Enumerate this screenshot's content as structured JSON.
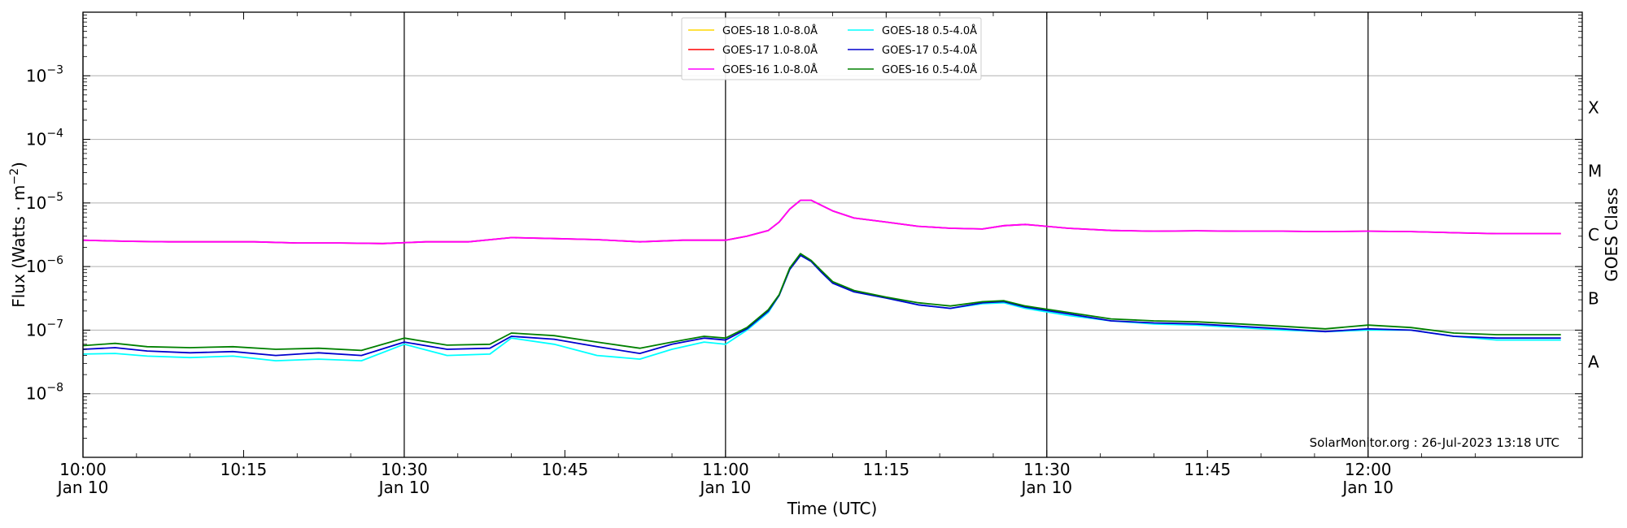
{
  "chart_data": {
    "type": "line",
    "title": "",
    "xlabel": "Time (UTC)",
    "ylabel": "Flux (Watts · m⁻²)",
    "y2label": "GOES Class",
    "y_scale": "log",
    "ylim": [
      1e-09,
      0.01
    ],
    "xlim": [
      "10:00",
      "12:20"
    ],
    "grid": "horizontal",
    "legend_position": "top-center",
    "x_ticks": [
      {
        "time": "10:00",
        "label": "10:00",
        "sublabel": "Jan 10"
      },
      {
        "time": "10:15",
        "label": "10:15",
        "sublabel": ""
      },
      {
        "time": "10:30",
        "label": "10:30",
        "sublabel": "Jan 10"
      },
      {
        "time": "10:45",
        "label": "10:45",
        "sublabel": ""
      },
      {
        "time": "11:00",
        "label": "11:00",
        "sublabel": "Jan 10"
      },
      {
        "time": "11:15",
        "label": "11:15",
        "sublabel": ""
      },
      {
        "time": "11:30",
        "label": "11:30",
        "sublabel": "Jan 10"
      },
      {
        "time": "11:45",
        "label": "11:45",
        "sublabel": ""
      },
      {
        "time": "12:00",
        "label": "12:00",
        "sublabel": "Jan 10"
      }
    ],
    "vertical_lines": [
      "10:00",
      "10:30",
      "11:00",
      "11:30",
      "12:00"
    ],
    "y_ticks": [
      {
        "value": 1e-08,
        "base": "10",
        "exp": "−8"
      },
      {
        "value": 1e-07,
        "base": "10",
        "exp": "−7"
      },
      {
        "value": 1e-06,
        "base": "10",
        "exp": "−6"
      },
      {
        "value": 1e-05,
        "base": "10",
        "exp": "−5"
      },
      {
        "value": 0.0001,
        "base": "10",
        "exp": "−4"
      },
      {
        "value": 0.001,
        "base": "10",
        "exp": "−3"
      }
    ],
    "goes_classes": [
      {
        "label": "A",
        "value": 3.16e-08
      },
      {
        "label": "B",
        "value": 3.16e-07
      },
      {
        "label": "C",
        "value": 3.16e-06
      },
      {
        "label": "M",
        "value": 3.16e-05
      },
      {
        "label": "X",
        "value": 0.000316
      }
    ],
    "credit": "SolarMonitor.org : 26-Jul-2023 13:18 UTC",
    "legend": [
      {
        "label": "GOES-18 1.0-8.0Å",
        "color": "#ffd700"
      },
      {
        "label": "GOES-17 1.0-8.0Å",
        "color": "#ff0000"
      },
      {
        "label": "GOES-16 1.0-8.0Å",
        "color": "#ff00ff"
      },
      {
        "label": "GOES-18 0.5-4.0Å",
        "color": "#00ffff"
      },
      {
        "label": "GOES-17 0.5-4.0Å",
        "color": "#0000cd"
      },
      {
        "label": "GOES-16 0.5-4.0Å",
        "color": "#008000"
      }
    ],
    "series": [
      {
        "name": "GOES-18 1.0-8.0Å",
        "color": "#ffd700",
        "x": [],
        "values": []
      },
      {
        "name": "GOES-17 1.0-8.0Å",
        "color": "#ff0000",
        "x": [
          "10:00",
          "10:04",
          "10:08",
          "10:12",
          "10:16",
          "10:20",
          "10:24",
          "10:28",
          "10:32",
          "10:36",
          "10:40",
          "10:44",
          "10:48",
          "10:52",
          "10:56",
          "11:00",
          "11:02",
          "11:04",
          "11:05",
          "11:06",
          "11:07",
          "11:08",
          "11:10",
          "11:12",
          "11:15",
          "11:18",
          "11:21",
          "11:24",
          "11:26",
          "11:28",
          "11:32",
          "11:36",
          "11:40",
          "11:44",
          "11:48",
          "11:52",
          "11:56",
          "12:00",
          "12:04",
          "12:08",
          "12:12",
          "12:18"
        ],
        "values": [
          2.6e-06,
          2.5e-06,
          2.45e-06,
          2.45e-06,
          2.45e-06,
          2.35e-06,
          2.35e-06,
          2.3e-06,
          2.45e-06,
          2.45e-06,
          2.85e-06,
          2.75e-06,
          2.65e-06,
          2.45e-06,
          2.6e-06,
          2.6e-06,
          3e-06,
          3.7e-06,
          5e-06,
          8e-06,
          1.1e-05,
          1.1e-05,
          7.5e-06,
          5.8e-06,
          5e-06,
          4.3e-06,
          4e-06,
          3.9e-06,
          4.4e-06,
          4.6e-06,
          4e-06,
          3.7e-06,
          3.6e-06,
          3.65e-06,
          3.6e-06,
          3.6e-06,
          3.55e-06,
          3.6e-06,
          3.55e-06,
          3.4e-06,
          3.3e-06,
          3.3e-06
        ]
      },
      {
        "name": "GOES-16 1.0-8.0Å",
        "color": "#ff00ff",
        "x": [
          "10:00",
          "10:04",
          "10:08",
          "10:12",
          "10:16",
          "10:20",
          "10:24",
          "10:28",
          "10:32",
          "10:36",
          "10:40",
          "10:44",
          "10:48",
          "10:52",
          "10:56",
          "11:00",
          "11:02",
          "11:04",
          "11:05",
          "11:06",
          "11:07",
          "11:08",
          "11:10",
          "11:12",
          "11:15",
          "11:18",
          "11:21",
          "11:24",
          "11:26",
          "11:28",
          "11:32",
          "11:36",
          "11:40",
          "11:44",
          "11:48",
          "11:52",
          "11:56",
          "12:00",
          "12:04",
          "12:08",
          "12:12",
          "12:18"
        ],
        "values": [
          2.6e-06,
          2.5e-06,
          2.45e-06,
          2.45e-06,
          2.45e-06,
          2.35e-06,
          2.35e-06,
          2.3e-06,
          2.45e-06,
          2.45e-06,
          2.85e-06,
          2.75e-06,
          2.65e-06,
          2.45e-06,
          2.6e-06,
          2.6e-06,
          3e-06,
          3.7e-06,
          5e-06,
          8e-06,
          1.1e-05,
          1.1e-05,
          7.5e-06,
          5.8e-06,
          5e-06,
          4.3e-06,
          4e-06,
          3.9e-06,
          4.4e-06,
          4.6e-06,
          4e-06,
          3.7e-06,
          3.6e-06,
          3.65e-06,
          3.6e-06,
          3.6e-06,
          3.55e-06,
          3.6e-06,
          3.55e-06,
          3.4e-06,
          3.3e-06,
          3.3e-06
        ]
      },
      {
        "name": "GOES-18 0.5-4.0Å",
        "color": "#00ffff",
        "x": [
          "10:00",
          "10:03",
          "10:06",
          "10:10",
          "10:14",
          "10:18",
          "10:22",
          "10:26",
          "10:30",
          "10:34",
          "10:38",
          "10:40",
          "10:44",
          "10:48",
          "10:52",
          "10:55",
          "10:58",
          "11:00",
          "11:02",
          "11:04",
          "11:05",
          "11:06",
          "11:07",
          "11:08",
          "11:09",
          "11:10",
          "11:12",
          "11:15",
          "11:18",
          "11:21",
          "11:24",
          "11:26",
          "11:28",
          "11:32",
          "11:36",
          "11:40",
          "11:44",
          "11:48",
          "11:52",
          "11:56",
          "12:00",
          "12:04",
          "12:08",
          "12:12",
          "12:18"
        ],
        "values": [
          4.2e-08,
          4.3e-08,
          3.9e-08,
          3.7e-08,
          3.9e-08,
          3.3e-08,
          3.5e-08,
          3.3e-08,
          6e-08,
          4e-08,
          4.2e-08,
          7.5e-08,
          6e-08,
          4e-08,
          3.5e-08,
          5e-08,
          6.5e-08,
          6e-08,
          1e-07,
          1.9e-07,
          3.5e-07,
          9e-07,
          1.5e-06,
          1.2e-06,
          8e-07,
          5.5e-07,
          4e-07,
          3.2e-07,
          2.5e-07,
          2.2e-07,
          2.6e-07,
          2.7e-07,
          2.2e-07,
          1.7e-07,
          1.4e-07,
          1.25e-07,
          1.2e-07,
          1.1e-07,
          1e-07,
          9.5e-08,
          1e-07,
          1e-07,
          8e-08,
          7e-08,
          7e-08
        ]
      },
      {
        "name": "GOES-17 0.5-4.0Å",
        "color": "#0000cd",
        "x": [
          "10:00",
          "10:03",
          "10:06",
          "10:10",
          "10:14",
          "10:18",
          "10:22",
          "10:26",
          "10:30",
          "10:34",
          "10:38",
          "10:40",
          "10:44",
          "10:48",
          "10:52",
          "10:55",
          "10:58",
          "11:00",
          "11:02",
          "11:04",
          "11:05",
          "11:06",
          "11:07",
          "11:08",
          "11:09",
          "11:10",
          "11:12",
          "11:15",
          "11:18",
          "11:21",
          "11:24",
          "11:26",
          "11:28",
          "11:32",
          "11:36",
          "11:40",
          "11:44",
          "11:48",
          "11:52",
          "11:56",
          "12:00",
          "12:04",
          "12:08",
          "12:12",
          "12:18"
        ],
        "values": [
          5e-08,
          5.3e-08,
          4.7e-08,
          4.4e-08,
          4.6e-08,
          4e-08,
          4.4e-08,
          4e-08,
          6.5e-08,
          5e-08,
          5.2e-08,
          8e-08,
          7.2e-08,
          5.5e-08,
          4.3e-08,
          6e-08,
          7.5e-08,
          7e-08,
          1.05e-07,
          2e-07,
          3.5e-07,
          9e-07,
          1.5e-06,
          1.2e-06,
          8e-07,
          5.5e-07,
          4e-07,
          3.2e-07,
          2.5e-07,
          2.2e-07,
          2.7e-07,
          2.8e-07,
          2.3e-07,
          1.8e-07,
          1.4e-07,
          1.3e-07,
          1.25e-07,
          1.15e-07,
          1.05e-07,
          9.5e-08,
          1.05e-07,
          1e-07,
          8e-08,
          7.5e-08,
          7.5e-08
        ]
      },
      {
        "name": "GOES-16 0.5-4.0Å",
        "color": "#008000",
        "x": [
          "10:00",
          "10:03",
          "10:06",
          "10:10",
          "10:14",
          "10:18",
          "10:22",
          "10:26",
          "10:30",
          "10:34",
          "10:38",
          "10:40",
          "10:44",
          "10:48",
          "10:52",
          "10:55",
          "10:58",
          "11:00",
          "11:02",
          "11:04",
          "11:05",
          "11:06",
          "11:07",
          "11:08",
          "11:09",
          "11:10",
          "11:12",
          "11:15",
          "11:18",
          "11:21",
          "11:24",
          "11:26",
          "11:28",
          "11:32",
          "11:36",
          "11:40",
          "11:44",
          "11:48",
          "11:52",
          "11:56",
          "12:00",
          "12:04",
          "12:08",
          "12:12",
          "12:18"
        ],
        "values": [
          5.7e-08,
          6.2e-08,
          5.5e-08,
          5.3e-08,
          5.5e-08,
          5e-08,
          5.2e-08,
          4.8e-08,
          7.5e-08,
          5.8e-08,
          6e-08,
          9e-08,
          8.2e-08,
          6.5e-08,
          5.2e-08,
          6.5e-08,
          8e-08,
          7.5e-08,
          1.1e-07,
          2.1e-07,
          3.6e-07,
          9.5e-07,
          1.6e-06,
          1.25e-06,
          8.5e-07,
          5.8e-07,
          4.2e-07,
          3.3e-07,
          2.7e-07,
          2.4e-07,
          2.8e-07,
          2.9e-07,
          2.4e-07,
          1.9e-07,
          1.5e-07,
          1.4e-07,
          1.35e-07,
          1.25e-07,
          1.15e-07,
          1.05e-07,
          1.2e-07,
          1.1e-07,
          9e-08,
          8.5e-08,
          8.5e-08
        ]
      }
    ]
  }
}
